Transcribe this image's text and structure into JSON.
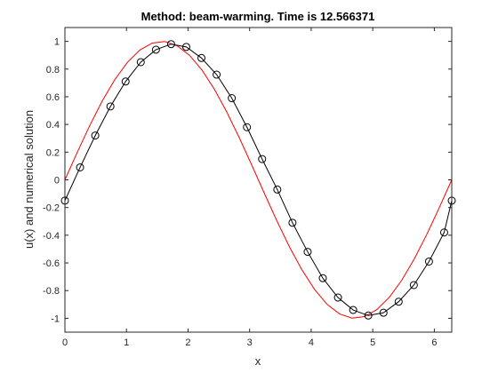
{
  "chart_data": {
    "type": "line",
    "title": "Method: beam-warming. Time is 12.566371",
    "xlabel": "x",
    "ylabel": "u(x) and numerical solution",
    "xlim": [
      0,
      6.2832
    ],
    "ylim": [
      -1.1,
      1.1
    ],
    "x_ticks": [
      {
        "value": 0,
        "label": "0"
      },
      {
        "value": 1,
        "label": "1"
      },
      {
        "value": 2,
        "label": "2"
      },
      {
        "value": 3,
        "label": "3"
      },
      {
        "value": 4,
        "label": "4"
      },
      {
        "value": 5,
        "label": "5"
      },
      {
        "value": 6,
        "label": "6"
      }
    ],
    "y_ticks": [
      {
        "value": -1,
        "label": "-1"
      },
      {
        "value": -0.8,
        "label": "-0.8"
      },
      {
        "value": -0.6,
        "label": "-0.6"
      },
      {
        "value": -0.4,
        "label": "-0.4"
      },
      {
        "value": -0.2,
        "label": "-0.2"
      },
      {
        "value": 0,
        "label": "0"
      },
      {
        "value": 0.2,
        "label": "0.2"
      },
      {
        "value": 0.4,
        "label": "0.4"
      },
      {
        "value": 0.6,
        "label": "0.6"
      },
      {
        "value": 0.8,
        "label": "0.8"
      },
      {
        "value": 1,
        "label": "1"
      }
    ],
    "grid": false,
    "legend": "none",
    "series": [
      {
        "color": "#ff0000",
        "style": "line",
        "x": [
          0,
          0.2027,
          0.4054,
          0.6081,
          0.8107,
          1.0134,
          1.2161,
          1.4188,
          1.6215,
          1.8242,
          2.0268,
          2.2295,
          2.4322,
          2.6349,
          2.8376,
          3.0403,
          3.2429,
          3.4456,
          3.6483,
          3.851,
          4.0537,
          4.2564,
          4.459,
          4.6617,
          4.8644,
          5.0671,
          5.2698,
          5.4725,
          5.6751,
          5.8778,
          6.0805,
          6.2832
        ],
        "y": [
          0,
          0.201,
          0.394,
          0.571,
          0.724,
          0.848,
          0.937,
          0.988,
          0.999,
          0.968,
          0.898,
          0.791,
          0.651,
          0.485,
          0.299,
          0.101,
          -0.101,
          -0.299,
          -0.485,
          -0.651,
          -0.791,
          -0.898,
          -0.968,
          -0.999,
          -0.988,
          -0.937,
          -0.848,
          -0.724,
          -0.571,
          -0.394,
          -0.201,
          0
        ]
      },
      {
        "color": "#000000",
        "style": "line-circle",
        "x": [
          0,
          0.2464,
          0.4928,
          0.7392,
          0.9856,
          1.232,
          1.4784,
          1.7248,
          1.9712,
          2.2176,
          2.464,
          2.7104,
          2.9568,
          3.2032,
          3.4496,
          3.696,
          3.9424,
          4.1888,
          4.4352,
          4.6816,
          4.928,
          5.1744,
          5.4208,
          5.6672,
          5.9136,
          6.16,
          6.2832
        ],
        "y": [
          -0.15,
          0.09,
          0.32,
          0.53,
          0.71,
          0.85,
          0.94,
          0.98,
          0.96,
          0.88,
          0.76,
          0.59,
          0.38,
          0.15,
          -0.07,
          -0.31,
          -0.52,
          -0.71,
          -0.85,
          -0.94,
          -0.98,
          -0.96,
          -0.88,
          -0.76,
          -0.59,
          -0.38,
          -0.15
        ]
      }
    ]
  }
}
